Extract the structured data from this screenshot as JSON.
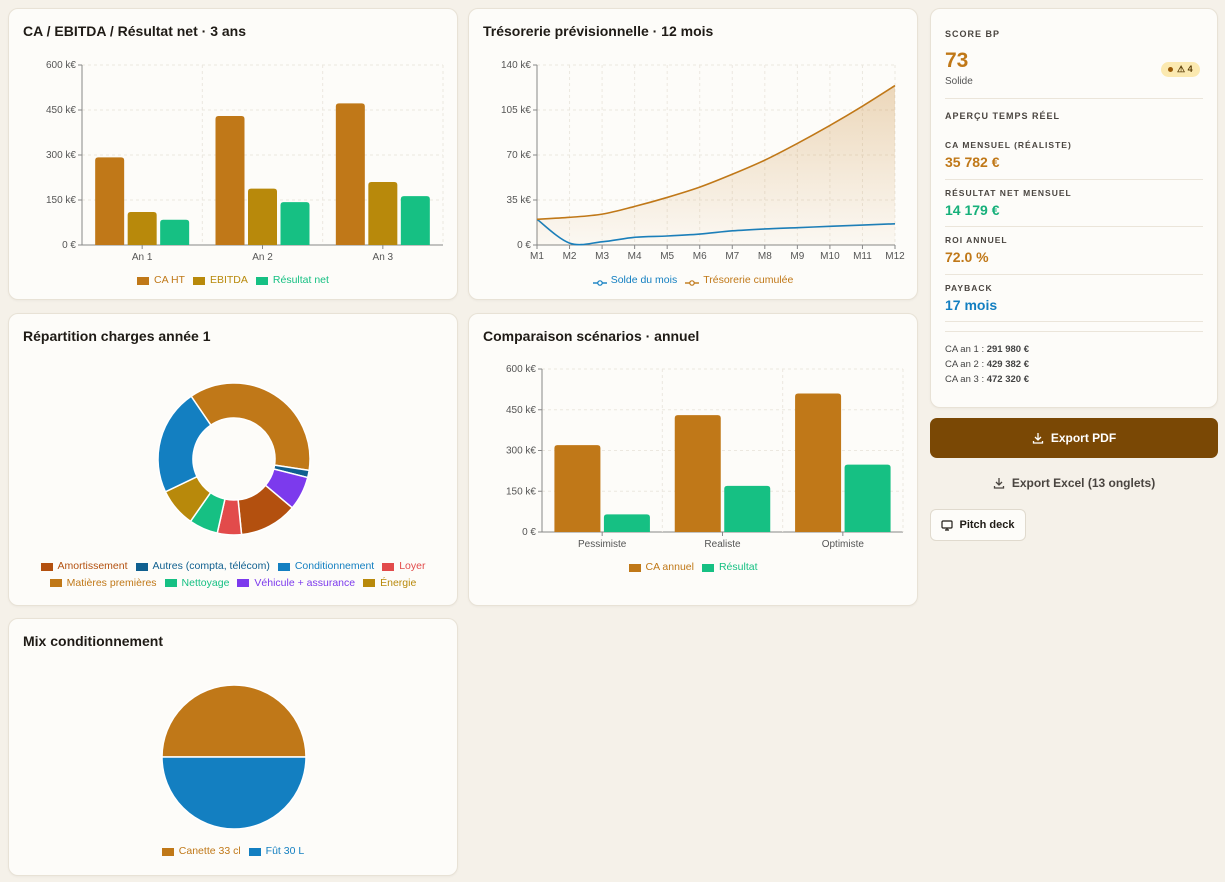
{
  "colors": {
    "brown": "#c07818",
    "olive": "#b8890b",
    "green": "#16c083",
    "blue": "#137fc1",
    "dark_brown": "#7a4805"
  },
  "cards": {
    "ca_ebitda": {
      "title": "CA / EBITDA / Résultat net · 3 ans",
      "chart_data": {
        "type": "bar",
        "categories": [
          "An 1",
          "An 2",
          "An 3"
        ],
        "y_ticks": [
          "0 €",
          "150 k€",
          "300 k€",
          "450 k€",
          "600 k€"
        ],
        "ylim": [
          0,
          600
        ],
        "series": [
          {
            "name": "CA HT",
            "color": "#c07818",
            "values": [
              292,
              430,
              472
            ]
          },
          {
            "name": "EBITDA",
            "color": "#b8890b",
            "values": [
              110,
              188,
              210
            ]
          },
          {
            "name": "Résultat net",
            "color": "#16c083",
            "values": [
              84,
              143,
              163
            ]
          }
        ]
      }
    },
    "tresorerie": {
      "title": "Trésorerie prévisionnelle · 12 mois",
      "chart_data": {
        "type": "line",
        "x": [
          "M1",
          "M2",
          "M3",
          "M4",
          "M5",
          "M6",
          "M7",
          "M8",
          "M9",
          "M10",
          "M11",
          "M12"
        ],
        "y_ticks": [
          "0 €",
          "35 k€",
          "70 k€",
          "105 k€",
          "140 k€"
        ],
        "ylim": [
          0,
          140
        ],
        "series": [
          {
            "name": "Solde du mois",
            "color": "#137fc1",
            "values": [
              20,
              1.5,
              2.5,
              6,
              7,
              8.5,
              11,
              12.5,
              13.5,
              14.5,
              15.5,
              16.5
            ]
          },
          {
            "name": "Trésorerie cumulée",
            "color": "#c07818",
            "values": [
              20,
              21.5,
              24,
              30,
              37,
              45,
              55,
              66,
              79,
              93,
              108,
              124
            ],
            "area": true
          }
        ]
      }
    },
    "repartition": {
      "title": "Répartition charges année 1",
      "chart_data": {
        "type": "pie",
        "donut": true,
        "slices": [
          {
            "name": "Matières premières",
            "color": "#c07818",
            "value": 36
          },
          {
            "name": "Autres (compta, télécom)",
            "color": "#0f5f8f",
            "value": 1.5
          },
          {
            "name": "Véhicule + assurance",
            "color": "#7c3aed",
            "value": 7
          },
          {
            "name": "Amortissement",
            "color": "#b3500f",
            "value": 12
          },
          {
            "name": "Loyer",
            "color": "#e24b4b",
            "value": 5
          },
          {
            "name": "Nettoyage",
            "color": "#16c083",
            "value": 6
          },
          {
            "name": "Énergie",
            "color": "#b8890b",
            "value": 8
          },
          {
            "name": "Conditionnement",
            "color": "#137fc1",
            "value": 22
          }
        ],
        "legend_rows": [
          [
            "Amortissement",
            "Autres (compta, télécom)",
            "Conditionnement",
            "Loyer"
          ],
          [
            "Matières premières",
            "Nettoyage",
            "Véhicule + assurance",
            "Énergie"
          ]
        ]
      }
    },
    "scenarios": {
      "title": "Comparaison scénarios · annuel",
      "chart_data": {
        "type": "bar",
        "categories": [
          "Pessimiste",
          "Realiste",
          "Optimiste"
        ],
        "y_ticks": [
          "0 €",
          "150 k€",
          "300 k€",
          "450 k€",
          "600 k€"
        ],
        "ylim": [
          0,
          600
        ],
        "series": [
          {
            "name": "CA annuel",
            "color": "#c07818",
            "values": [
              320,
              430,
              510
            ]
          },
          {
            "name": "Résultat",
            "color": "#16c083",
            "values": [
              65,
              170,
              248
            ]
          }
        ]
      }
    },
    "mix": {
      "title": "Mix conditionnement",
      "chart_data": {
        "type": "pie",
        "slices": [
          {
            "name": "Canette 33 cl",
            "color": "#c07818",
            "value": 50
          },
          {
            "name": "Fût 30 L",
            "color": "#137fc1",
            "value": 50
          }
        ]
      }
    }
  },
  "score_panel": {
    "title": "SCORE BP",
    "score": "73",
    "score_label": "Solide",
    "badge": "⚠ 4",
    "apercu_title": "APERÇU TEMPS RÉEL",
    "kpis": [
      {
        "label": "CA MENSUEL (RÉALISTE)",
        "value": "35 782 €",
        "color": "#c07818"
      },
      {
        "label": "RÉSULTAT NET MENSUEL",
        "value": "14 179 €",
        "color": "#16b07a"
      },
      {
        "label": "ROI ANNUEL",
        "value": "72.0 %",
        "color": "#c07818"
      },
      {
        "label": "PAYBACK",
        "value": "17 mois",
        "color": "#137fc1"
      }
    ],
    "ca_years": [
      {
        "label": "CA an 1 :",
        "value": "291 980 €"
      },
      {
        "label": "CA an 2 :",
        "value": "429 382 €"
      },
      {
        "label": "CA an 3 :",
        "value": "472 320 €"
      }
    ]
  },
  "actions": {
    "export_pdf": "Export PDF",
    "export_excel": "Export Excel (13 onglets)",
    "pitch_deck": "Pitch deck"
  }
}
